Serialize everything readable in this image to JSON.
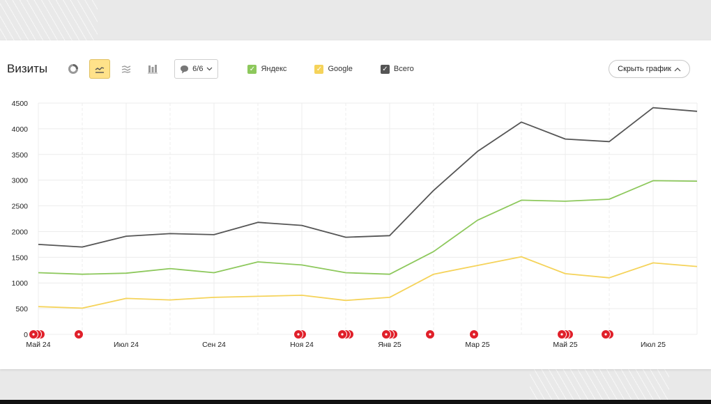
{
  "widget": {
    "title": "Визиты",
    "filter_label": "6/6",
    "hide_chart_label": "Скрыть график"
  },
  "toolbar_icons": [
    "pie-chart-icon",
    "line-chart-icon",
    "area-chart-icon",
    "bar-chart-icon"
  ],
  "legend": [
    {
      "label": "Яндекс",
      "color": "#8dc85c"
    },
    {
      "label": "Google",
      "color": "#f5d35a"
    },
    {
      "label": "Всего",
      "color": "#555555"
    }
  ],
  "colors": {
    "accent_active": "#ffe28a",
    "marker": "#e0202a"
  },
  "chart_data": {
    "type": "line",
    "x": [
      "Май 24",
      "Июн 24",
      "Июл 24",
      "Авг 24",
      "Сен 24",
      "Окт 24",
      "Ноя 24",
      "Дек 24",
      "Янв 25",
      "Фев 25",
      "Мар 25",
      "Апр 25",
      "Май 25",
      "Июн 25",
      "Июл 25",
      "Авг 25"
    ],
    "x_tick_labels": [
      "Май 24",
      "Июл 24",
      "Сен 24",
      "Ноя 24",
      "Янв 25",
      "Мар 25",
      "Май 25",
      "Июл 25"
    ],
    "series": [
      {
        "name": "Яндекс",
        "color": "#8dc85c",
        "values": [
          1200,
          1170,
          1190,
          1280,
          1200,
          1410,
          1350,
          1200,
          1170,
          1610,
          2220,
          2610,
          2590,
          2630,
          2990,
          2980
        ]
      },
      {
        "name": "Google",
        "color": "#f5d35a",
        "values": [
          540,
          510,
          700,
          670,
          720,
          740,
          760,
          660,
          720,
          1170,
          1340,
          1510,
          1180,
          1100,
          1390,
          1320
        ]
      },
      {
        "name": "Всего",
        "color": "#555555",
        "values": [
          1750,
          1700,
          1910,
          1960,
          1940,
          2180,
          2120,
          1890,
          1920,
          2800,
          3560,
          4130,
          3800,
          3750,
          4410,
          4340
        ]
      }
    ],
    "ylim": [
      0,
      4500
    ],
    "yticks": [
      0,
      500,
      1000,
      1500,
      2000,
      2500,
      3000,
      3500,
      4000,
      4500
    ],
    "ytick_labels": [
      "0",
      "500",
      "1000",
      "1500",
      "2000",
      "2500",
      "3000",
      "3500",
      "4000",
      "4500"
    ],
    "annotations": [
      {
        "x": "Май 24",
        "count": 3
      },
      {
        "x": "Июн 24",
        "count": 1
      },
      {
        "x": "Ноя 24",
        "count": 2
      },
      {
        "x": "Дек 24",
        "count": 3
      },
      {
        "x": "Янв 25",
        "count": 3
      },
      {
        "x": "Фев 25",
        "count": 1
      },
      {
        "x": "Мар 25",
        "count": 1
      },
      {
        "x": "Май 25",
        "count": 3
      },
      {
        "x": "Июн 25",
        "count": 2
      }
    ],
    "grid": true
  }
}
